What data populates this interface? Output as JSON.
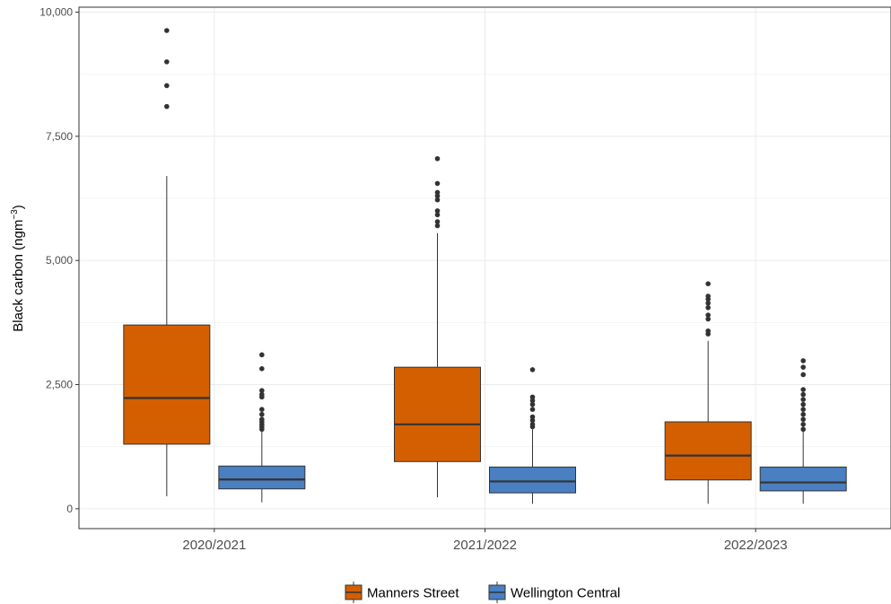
{
  "chart_data": {
    "type": "box",
    "ylabel_main": "Black carbon (ngm",
    "ylabel_sup": "−3",
    "ylabel_close": ")",
    "xlabel": "",
    "ylim": [
      -400,
      10100
    ],
    "yticks": [
      0,
      2500,
      5000,
      7500,
      10000
    ],
    "ytick_labels": [
      "0",
      "2,500",
      "5,000",
      "7,500",
      "10,000"
    ],
    "categories": [
      "2020/2021",
      "2021/2022",
      "2022/2023"
    ],
    "grid": true,
    "legend_position": "bottom",
    "series": [
      {
        "name": "Manners Street",
        "color": "#d35f00",
        "boxes": [
          {
            "min": 250,
            "q1": 1300,
            "median": 2230,
            "q3": 3700,
            "max": 6700,
            "outliers": [
              8100,
              8520,
              9000,
              9630
            ]
          },
          {
            "min": 230,
            "q1": 950,
            "median": 1700,
            "q3": 2850,
            "max": 5550,
            "outliers": [
              5700,
              5780,
              5920,
              6000,
              6220,
              6300,
              6370,
              6550,
              7050
            ]
          },
          {
            "min": 100,
            "q1": 580,
            "median": 1070,
            "q3": 1750,
            "max": 3380,
            "outliers": [
              3520,
              3580,
              3820,
              3900,
              4050,
              4140,
              4220,
              4280,
              4530
            ]
          }
        ]
      },
      {
        "name": "Wellington Central",
        "color": "#4a7fc1",
        "boxes": [
          {
            "min": 130,
            "q1": 400,
            "median": 590,
            "q3": 860,
            "max": 1560,
            "outliers": [
              1600,
              1650,
              1700,
              1750,
              1800,
              1900,
              2000,
              2250,
              2300,
              2380,
              2820,
              3100
            ]
          },
          {
            "min": 100,
            "q1": 320,
            "median": 550,
            "q3": 840,
            "max": 1600,
            "outliers": [
              1650,
              1700,
              1780,
              1850,
              2000,
              2100,
              2180,
              2250,
              2800
            ]
          },
          {
            "min": 100,
            "q1": 360,
            "median": 530,
            "q3": 840,
            "max": 1550,
            "outliers": [
              1600,
              1700,
              1800,
              1900,
              2000,
              2100,
              2200,
              2300,
              2400,
              2700,
              2850,
              2980
            ]
          }
        ]
      }
    ]
  }
}
